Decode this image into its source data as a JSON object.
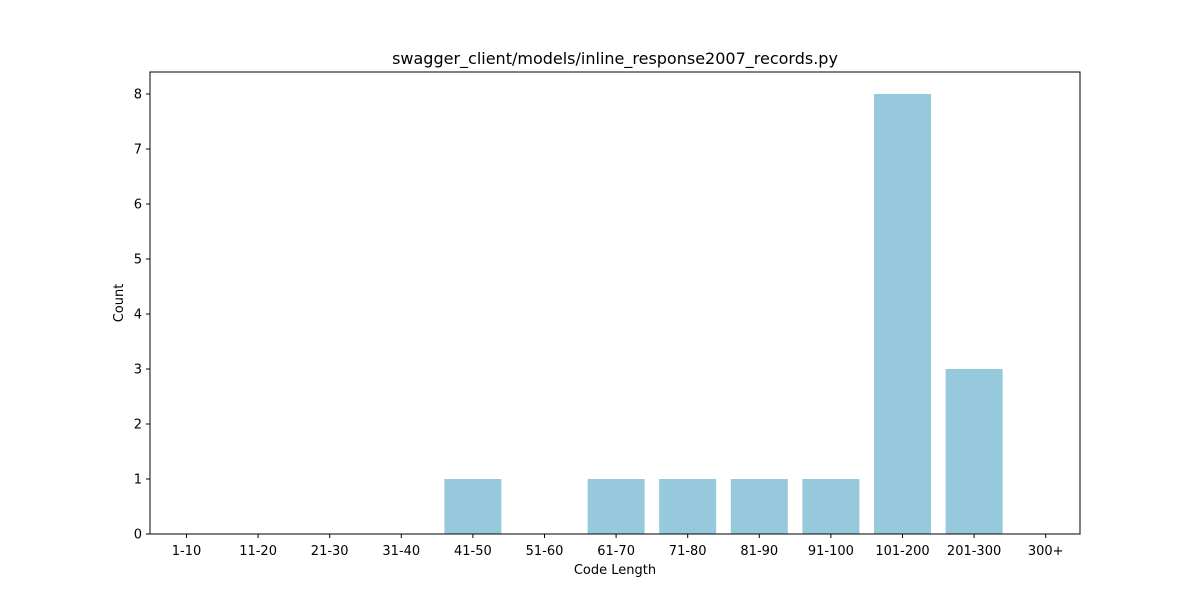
{
  "chart_data": {
    "type": "bar",
    "title": "swagger_client/models/inline_response2007_records.py",
    "xlabel": "Code Length",
    "ylabel": "Count",
    "categories": [
      "1-10",
      "11-20",
      "21-30",
      "31-40",
      "41-50",
      "51-60",
      "61-70",
      "71-80",
      "81-90",
      "91-100",
      "101-200",
      "201-300",
      "300+"
    ],
    "values": [
      0,
      0,
      0,
      0,
      1,
      0,
      1,
      1,
      1,
      1,
      8,
      3,
      0
    ],
    "ylim": [
      0,
      8.4
    ],
    "yticks": [
      0,
      1,
      2,
      3,
      4,
      5,
      6,
      7,
      8
    ],
    "bar_color": "#96c9dc",
    "grid": false,
    "legend": "none"
  }
}
